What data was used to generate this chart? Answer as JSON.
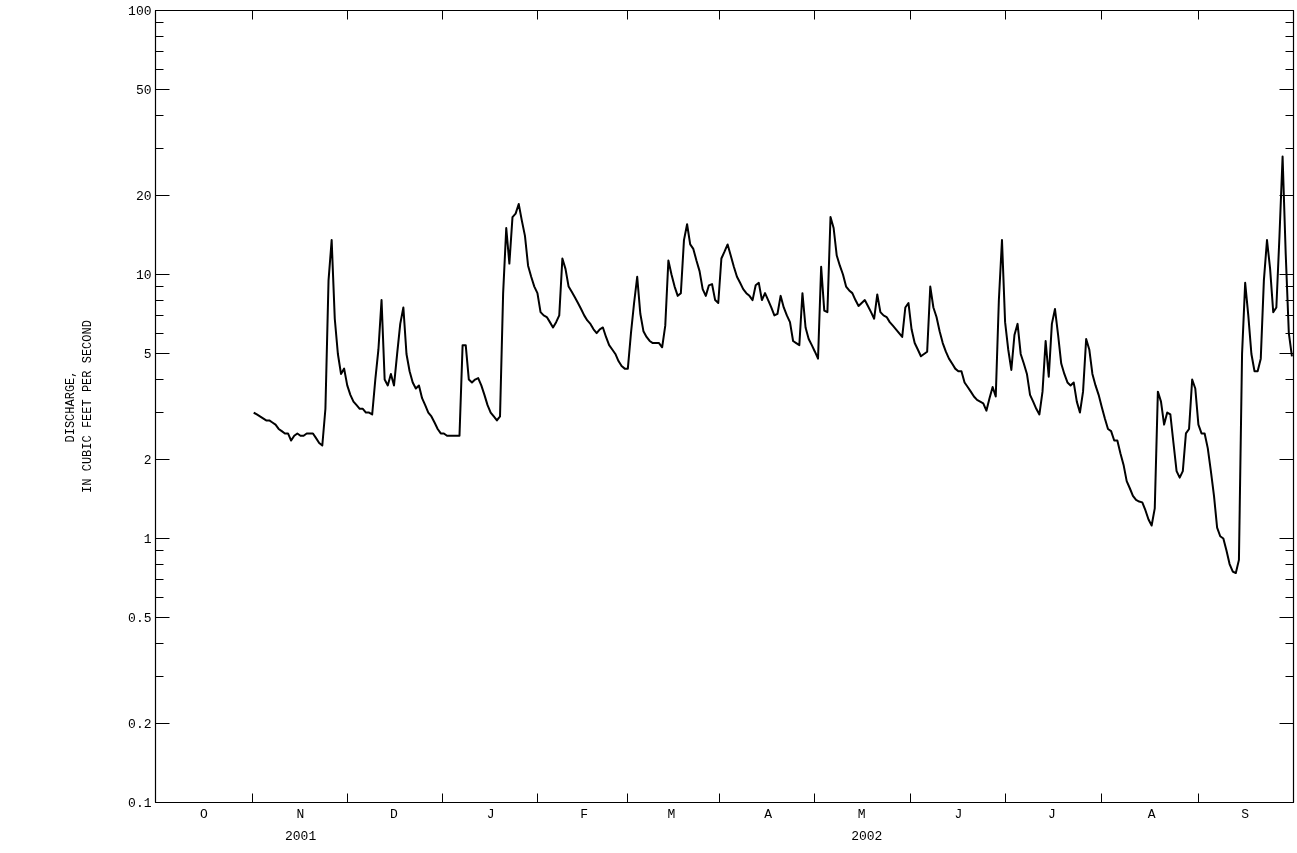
{
  "chart_data": {
    "type": "line",
    "ylabel": "DISCHARGE,\nIN CUBIC FEET PER SECOND",
    "log": true,
    "grid": false,
    "marker": "none",
    "line_style": "solid",
    "annotations": [
      "2001",
      "2002"
    ],
    "categories": [
      null,
      null,
      null,
      null,
      null,
      null,
      null,
      null,
      null,
      null,
      null,
      null,
      null,
      null,
      null,
      "O",
      null,
      null,
      null,
      null,
      null,
      null,
      null,
      null,
      null,
      null,
      null,
      null,
      null,
      null,
      null,
      null,
      null,
      null,
      null,
      null,
      null,
      null,
      null,
      null,
      null,
      null,
      null,
      null,
      null,
      null,
      "N",
      null,
      null,
      null,
      null,
      null,
      null,
      null,
      null,
      null,
      null,
      null,
      null,
      null,
      null,
      null,
      null,
      null,
      null,
      null,
      null,
      null,
      null,
      null,
      null,
      null,
      null,
      null,
      null,
      null,
      "D",
      null,
      null,
      null,
      null,
      null,
      null,
      null,
      null,
      null,
      null,
      null,
      null,
      null,
      null,
      null,
      null,
      null,
      null,
      null,
      null,
      null,
      null,
      null,
      null,
      null,
      null,
      null,
      null,
      null,
      null,
      "J",
      null,
      null,
      null,
      null,
      null,
      null,
      null,
      null,
      null,
      null,
      null,
      null,
      null,
      null,
      null,
      null,
      null,
      null,
      null,
      null,
      null,
      null,
      null,
      null,
      null,
      null,
      null,
      null,
      null,
      "F",
      null,
      null,
      null,
      null,
      null,
      null,
      null,
      null,
      null,
      null,
      null,
      null,
      null,
      null,
      null,
      null,
      null,
      null,
      null,
      null,
      null,
      null,
      null,
      null,
      null,
      null,
      null,
      "M",
      null,
      null,
      null,
      null,
      null,
      null,
      null,
      null,
      null,
      null,
      null,
      null,
      null,
      null,
      null,
      null,
      null,
      null,
      null,
      null,
      null,
      null,
      null,
      null,
      null,
      null,
      null,
      null,
      null,
      null,
      "A",
      null,
      null,
      null,
      null,
      null,
      null,
      null,
      null,
      null,
      null,
      null,
      null,
      null,
      null,
      null,
      null,
      null,
      null,
      null,
      null,
      null,
      null,
      null,
      null,
      null,
      null,
      null,
      null,
      null,
      "M",
      null,
      null,
      null,
      null,
      null,
      null,
      null,
      null,
      null,
      null,
      null,
      null,
      null,
      null,
      null,
      null,
      null,
      null,
      null,
      null,
      null,
      null,
      null,
      null,
      null,
      null,
      null,
      null,
      null,
      null,
      "J",
      null,
      null,
      null,
      null,
      null,
      null,
      null,
      null,
      null,
      null,
      null,
      null,
      null,
      null,
      null,
      null,
      null,
      null,
      null,
      null,
      null,
      null,
      null,
      null,
      null,
      null,
      null,
      null,
      null,
      "J",
      null,
      null,
      null,
      null,
      null,
      null,
      null,
      null,
      null,
      null,
      null,
      null,
      null,
      null,
      null,
      null,
      null,
      null,
      null,
      null,
      null,
      null,
      null,
      null,
      null,
      null,
      null,
      null,
      null,
      null,
      null,
      "A",
      null,
      null,
      null,
      null,
      null,
      null,
      null,
      null,
      null,
      null,
      null,
      null,
      null,
      null,
      null,
      null,
      null,
      null,
      null,
      null,
      null,
      null,
      null,
      null,
      null,
      null,
      null,
      null,
      null,
      "S",
      null,
      null,
      null,
      null,
      null,
      null,
      null,
      null,
      null,
      null,
      null,
      null,
      null,
      null,
      null
    ],
    "ylim": [
      0.1,
      100
    ],
    "yticks": [
      0.1,
      0.2,
      {
        "value": 0.3,
        "label": null
      },
      {
        "value": 0.4,
        "label": null
      },
      0.5,
      {
        "value": 0.6,
        "label": null
      },
      {
        "value": 0.7,
        "label": null
      },
      {
        "value": 0.8,
        "label": null
      },
      {
        "value": 0.9,
        "label": null
      },
      1,
      2,
      {
        "value": 3,
        "label": null
      },
      {
        "value": 4,
        "label": null
      },
      5,
      {
        "value": 6,
        "label": null
      },
      {
        "value": 7,
        "label": null
      },
      {
        "value": 8,
        "label": null
      },
      {
        "value": 9,
        "label": null
      },
      10,
      20,
      {
        "value": 30,
        "label": null
      },
      {
        "value": 40,
        "label": null
      },
      50,
      {
        "value": 60,
        "label": null
      },
      {
        "value": 70,
        "label": null
      },
      {
        "value": 80,
        "label": null
      },
      {
        "value": 90,
        "label": null
      },
      100
    ],
    "series": [
      {
        "color": "#000000",
        "values": [
          null,
          null,
          null,
          null,
          null,
          null,
          null,
          null,
          null,
          null,
          null,
          null,
          null,
          null,
          null,
          null,
          null,
          null,
          null,
          null,
          null,
          null,
          null,
          null,
          null,
          null,
          null,
          null,
          null,
          null,
          null,
          3.0,
          2.95,
          2.9,
          2.85,
          2.8,
          2.8,
          2.75,
          2.7,
          2.6,
          2.55,
          2.5,
          2.5,
          2.35,
          2.45,
          2.5,
          2.45,
          2.45,
          2.5,
          2.5,
          2.5,
          2.4,
          2.3,
          2.25,
          3.1,
          9.5,
          13.5,
          6.8,
          5.0,
          4.2,
          4.4,
          3.8,
          3.5,
          3.3,
          3.2,
          3.1,
          3.1,
          3.0,
          3.0,
          2.95,
          4.0,
          5.2,
          8.0,
          4.0,
          3.8,
          4.2,
          3.8,
          5.0,
          6.5,
          7.5,
          5.0,
          4.3,
          3.9,
          3.7,
          3.8,
          3.4,
          3.2,
          3.0,
          2.9,
          2.75,
          2.6,
          2.5,
          2.5,
          2.45,
          2.45,
          2.45,
          2.45,
          2.45,
          5.4,
          5.4,
          4.0,
          3.9,
          4.0,
          4.05,
          3.8,
          3.5,
          3.2,
          3.0,
          2.9,
          2.8,
          2.9,
          8.5,
          15,
          11,
          16.5,
          17,
          18.5,
          16,
          14,
          10.8,
          9.8,
          9.0,
          8.5,
          7.2,
          7.0,
          6.9,
          6.6,
          6.3,
          6.6,
          7.0,
          11.5,
          10.5,
          9.0,
          8.6,
          8.2,
          7.8,
          7.4,
          7.0,
          6.7,
          6.5,
          6.2,
          6.0,
          6.2,
          6.3,
          5.8,
          5.4,
          5.2,
          5.0,
          4.7,
          4.5,
          4.4,
          4.4,
          6.0,
          7.8,
          9.8,
          7.1,
          6.1,
          5.8,
          5.6,
          5.5,
          5.5,
          5.5,
          5.3,
          6.4,
          11.3,
          10.0,
          9.0,
          8.3,
          8.5,
          13.5,
          15.5,
          13,
          12.5,
          11.3,
          10.3,
          8.8,
          8.3,
          9.1,
          9.2,
          8.0,
          7.8,
          11.5,
          12.2,
          13.0,
          11.8,
          10.7,
          9.8,
          9.3,
          8.8,
          8.5,
          8.3,
          8.0,
          9.1,
          9.3,
          8.0,
          8.5,
          8.0,
          7.5,
          7.0,
          7.1,
          8.3,
          7.5,
          7.0,
          6.6,
          5.6,
          5.5,
          5.4,
          8.5,
          6.3,
          5.7,
          5.4,
          5.1,
          4.8,
          10.7,
          7.3,
          7.2,
          16.5,
          15,
          11.8,
          10.8,
          10.0,
          9.0,
          8.7,
          8.5,
          8.0,
          7.6,
          7.8,
          8.0,
          7.6,
          7.2,
          6.8,
          8.4,
          7.2,
          7.0,
          6.9,
          6.6,
          6.4,
          6.2,
          6.0,
          5.8,
          7.5,
          7.8,
          6.2,
          5.5,
          5.2,
          4.9,
          5.0,
          5.1,
          9.0,
          7.5,
          6.9,
          6.1,
          5.5,
          5.1,
          4.8,
          4.6,
          4.4,
          4.3,
          4.3,
          3.9,
          3.75,
          3.6,
          3.45,
          3.35,
          3.3,
          3.25,
          3.05,
          3.4,
          3.75,
          3.45,
          8,
          13.5,
          6.6,
          5.2,
          4.35,
          5.9,
          6.5,
          5.0,
          4.6,
          4.2,
          3.5,
          3.3,
          3.1,
          2.95,
          3.6,
          5.6,
          4.1,
          6.5,
          7.4,
          5.9,
          4.6,
          4.2,
          3.9,
          3.8,
          3.9,
          3.3,
          3.0,
          3.6,
          5.7,
          5.2,
          4.2,
          3.8,
          3.5,
          3.15,
          2.85,
          2.6,
          2.55,
          2.35,
          2.35,
          2.1,
          1.9,
          1.65,
          1.55,
          1.45,
          1.4,
          1.38,
          1.37,
          1.28,
          1.18,
          1.12,
          1.3,
          3.6,
          3.3,
          2.7,
          3.0,
          2.95,
          2.3,
          1.8,
          1.7,
          1.8,
          2.5,
          2.6,
          4.0,
          3.7,
          2.7,
          2.5,
          2.5,
          2.2,
          1.8,
          1.45,
          1.1,
          1.02,
          1.0,
          0.9,
          0.8,
          0.75,
          0.74,
          0.83,
          5.0,
          9.3,
          7.0,
          5.0,
          4.3,
          4.3,
          4.8,
          9.5,
          13.5,
          10.5,
          7.2,
          7.5,
          14,
          28,
          12,
          6,
          4.9
        ]
      }
    ]
  }
}
